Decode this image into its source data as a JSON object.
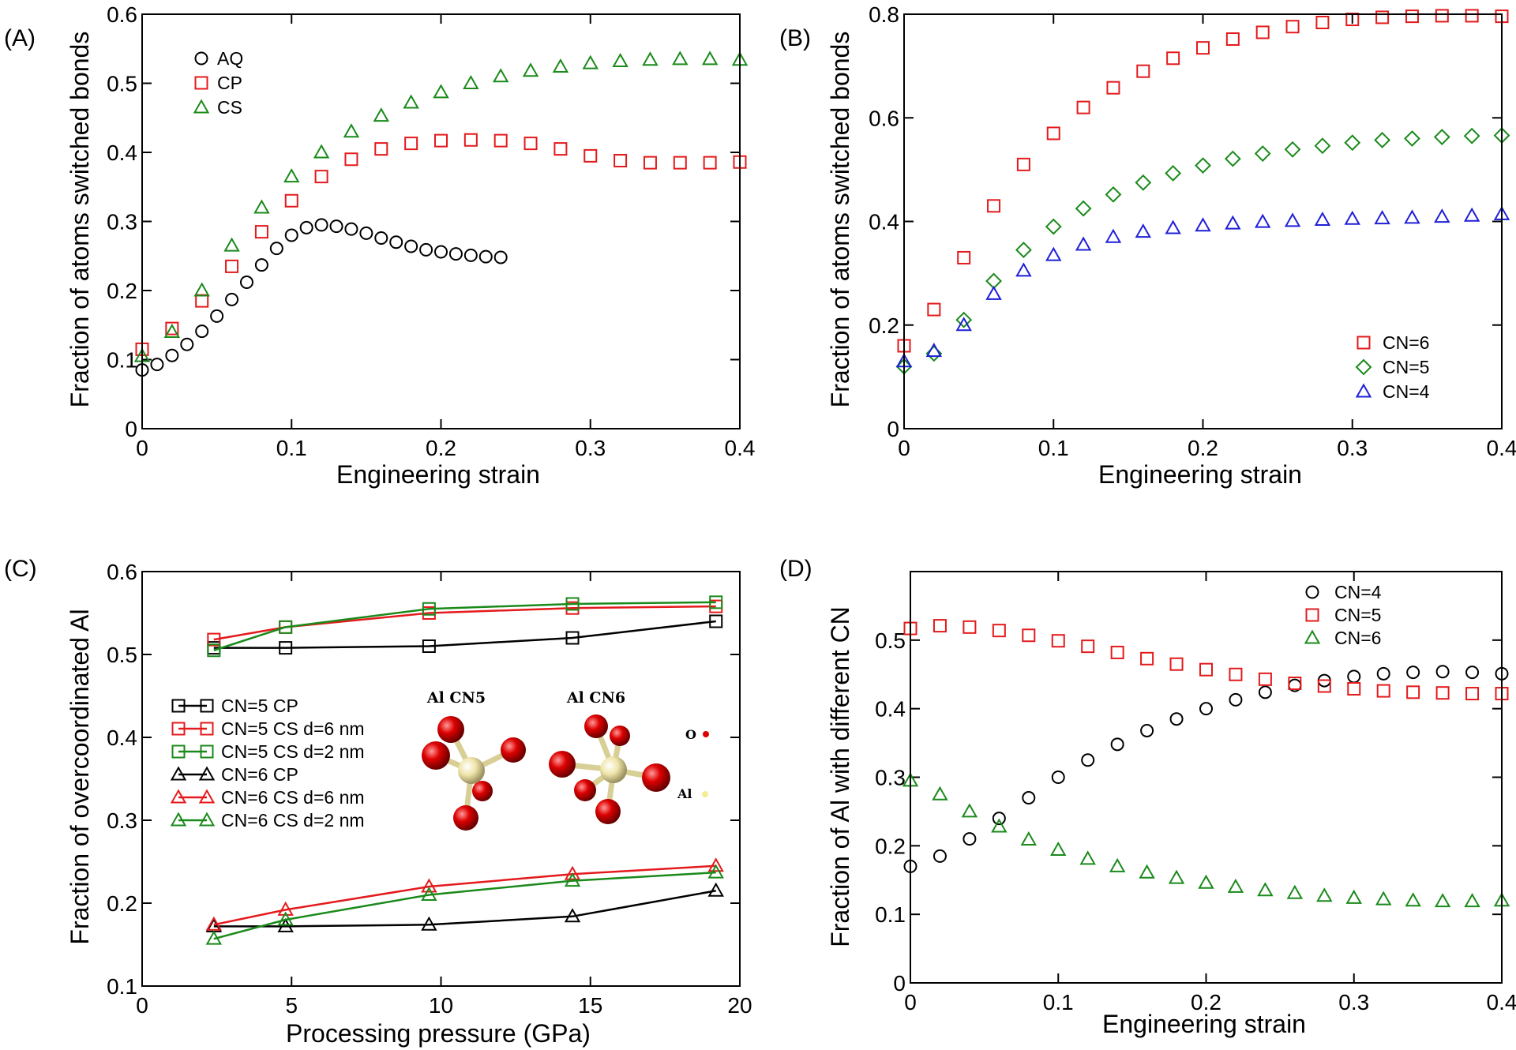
{
  "panels": [
    {
      "label": "(A)",
      "xlabel": "Engineering strain",
      "ylabel": "Fraction of atoms switched bonds",
      "xlim": [
        0,
        0.4
      ],
      "ylim": [
        0,
        0.6
      ],
      "xticks": [
        0,
        0.1,
        0.2,
        0.3,
        0.4
      ],
      "xtick_labels": [
        "0",
        "0.1",
        "0.2",
        "0.3",
        "0.4"
      ],
      "yticks": [
        0,
        0.1,
        0.2,
        0.3,
        0.4,
        0.5,
        0.6
      ],
      "ytick_labels": [
        "0",
        "0.1",
        "0.2",
        "0.3",
        "0.4",
        "0.5",
        "0.6"
      ],
      "legend_position": "top-left"
    },
    {
      "label": "(B)",
      "xlabel": "Engineering strain",
      "ylabel": "Fraction of atoms switched bonds",
      "xlim": [
        0,
        0.4
      ],
      "ylim": [
        0,
        0.8
      ],
      "xticks": [
        0,
        0.1,
        0.2,
        0.3,
        0.4
      ],
      "xtick_labels": [
        "0",
        "0.1",
        "0.2",
        "0.3",
        "0.4"
      ],
      "yticks": [
        0,
        0.2,
        0.4,
        0.6,
        0.8
      ],
      "ytick_labels": [
        "0",
        "0.2",
        "0.4",
        "0.6",
        "0.8"
      ],
      "legend_position": "bottom-right"
    },
    {
      "label": "(C)",
      "xlabel": "Processing pressure (GPa)",
      "ylabel": "Fraction of overcoordinated Al",
      "xlim": [
        0,
        20
      ],
      "ylim": [
        0.1,
        0.6
      ],
      "xticks": [
        0,
        5,
        10,
        15,
        20
      ],
      "xtick_labels": [
        "0",
        "5",
        "10",
        "15",
        "20"
      ],
      "yticks": [
        0.1,
        0.2,
        0.3,
        0.4,
        0.5,
        0.6
      ],
      "ytick_labels": [
        "0.1",
        "0.2",
        "0.3",
        "0.4",
        "0.5",
        "0.6"
      ],
      "legend_position": "center-left",
      "inset": {
        "title_cn5": "Al CN5",
        "title_cn6": "Al CN6",
        "key_o": "O",
        "key_al": "Al"
      }
    },
    {
      "label": "(D)",
      "xlabel": "Engineering strain",
      "ylabel": "Fraction of Al with different CN",
      "xlim": [
        0,
        0.4
      ],
      "ylim": [
        0,
        0.6
      ],
      "xticks": [
        0,
        0.1,
        0.2,
        0.3,
        0.4
      ],
      "xtick_labels": [
        "0",
        "0.1",
        "0.2",
        "0.3",
        "0.4"
      ],
      "yticks": [
        0,
        0.1,
        0.2,
        0.3,
        0.4,
        0.5
      ],
      "ytick_labels": [
        "0",
        "0.1",
        "0.2",
        "0.3",
        "0.4",
        "0.5"
      ],
      "legend_position": "top-right"
    }
  ],
  "colors": {
    "black": "#000000",
    "red": "#e41a1c",
    "green": "#1a8a1a",
    "blue": "#1f1fd8",
    "oxygen": "#dd0000",
    "aluminum": "#eee4a8"
  },
  "chart_data": [
    {
      "type": "scatter",
      "panel": "(A)",
      "series": [
        {
          "name": "AQ",
          "marker": "circle",
          "color": "#000000",
          "x": [
            0,
            0.01,
            0.02,
            0.03,
            0.04,
            0.05,
            0.06,
            0.07,
            0.08,
            0.09,
            0.1,
            0.11,
            0.12,
            0.13,
            0.14,
            0.15,
            0.16,
            0.17,
            0.18,
            0.19,
            0.2,
            0.21,
            0.22,
            0.23,
            0.24
          ],
          "y": [
            0.085,
            0.093,
            0.106,
            0.122,
            0.141,
            0.163,
            0.187,
            0.212,
            0.237,
            0.261,
            0.28,
            0.291,
            0.295,
            0.293,
            0.289,
            0.283,
            0.276,
            0.27,
            0.264,
            0.259,
            0.256,
            0.253,
            0.251,
            0.249,
            0.248
          ]
        },
        {
          "name": "CP",
          "marker": "square",
          "color": "#e41a1c",
          "x": [
            0,
            0.02,
            0.04,
            0.06,
            0.08,
            0.1,
            0.12,
            0.14,
            0.16,
            0.18,
            0.2,
            0.22,
            0.24,
            0.26,
            0.28,
            0.3,
            0.32,
            0.34,
            0.36,
            0.38,
            0.4
          ],
          "y": [
            0.115,
            0.145,
            0.185,
            0.235,
            0.285,
            0.33,
            0.365,
            0.39,
            0.405,
            0.413,
            0.417,
            0.418,
            0.417,
            0.413,
            0.405,
            0.395,
            0.388,
            0.385,
            0.385,
            0.385,
            0.386
          ]
        },
        {
          "name": "CS",
          "marker": "triangle",
          "color": "#1a8a1a",
          "x": [
            0,
            0.02,
            0.04,
            0.06,
            0.08,
            0.1,
            0.12,
            0.14,
            0.16,
            0.18,
            0.2,
            0.22,
            0.24,
            0.26,
            0.28,
            0.3,
            0.32,
            0.34,
            0.36,
            0.38,
            0.4
          ],
          "y": [
            0.105,
            0.14,
            0.2,
            0.265,
            0.32,
            0.365,
            0.4,
            0.43,
            0.453,
            0.472,
            0.487,
            0.5,
            0.51,
            0.518,
            0.524,
            0.529,
            0.532,
            0.534,
            0.535,
            0.535,
            0.534
          ]
        }
      ]
    },
    {
      "type": "scatter",
      "panel": "(B)",
      "series": [
        {
          "name": "CN=6",
          "marker": "square",
          "color": "#e41a1c",
          "x": [
            0,
            0.02,
            0.04,
            0.06,
            0.08,
            0.1,
            0.12,
            0.14,
            0.16,
            0.18,
            0.2,
            0.22,
            0.24,
            0.26,
            0.28,
            0.3,
            0.32,
            0.34,
            0.36,
            0.38,
            0.4
          ],
          "y": [
            0.16,
            0.23,
            0.33,
            0.43,
            0.51,
            0.57,
            0.62,
            0.658,
            0.69,
            0.715,
            0.735,
            0.752,
            0.765,
            0.776,
            0.784,
            0.79,
            0.794,
            0.796,
            0.797,
            0.797,
            0.796
          ]
        },
        {
          "name": "CN=5",
          "marker": "diamond",
          "color": "#1a8a1a",
          "x": [
            0,
            0.02,
            0.04,
            0.06,
            0.08,
            0.1,
            0.12,
            0.14,
            0.16,
            0.18,
            0.2,
            0.22,
            0.24,
            0.26,
            0.28,
            0.3,
            0.32,
            0.34,
            0.36,
            0.38,
            0.4
          ],
          "y": [
            0.12,
            0.145,
            0.21,
            0.285,
            0.345,
            0.39,
            0.425,
            0.452,
            0.475,
            0.493,
            0.508,
            0.521,
            0.531,
            0.539,
            0.546,
            0.552,
            0.557,
            0.56,
            0.563,
            0.565,
            0.566
          ]
        },
        {
          "name": "CN=4",
          "marker": "triangle",
          "color": "#1f1fd8",
          "x": [
            0,
            0.02,
            0.04,
            0.06,
            0.08,
            0.1,
            0.12,
            0.14,
            0.16,
            0.18,
            0.2,
            0.22,
            0.24,
            0.26,
            0.28,
            0.3,
            0.32,
            0.34,
            0.36,
            0.38,
            0.4
          ],
          "y": [
            0.13,
            0.15,
            0.2,
            0.26,
            0.305,
            0.335,
            0.355,
            0.37,
            0.38,
            0.387,
            0.392,
            0.396,
            0.399,
            0.401,
            0.403,
            0.405,
            0.406,
            0.407,
            0.409,
            0.411,
            0.414
          ]
        }
      ]
    },
    {
      "type": "line",
      "panel": "(C)",
      "x": [
        2.4,
        4.8,
        9.6,
        14.4,
        19.2
      ],
      "series": [
        {
          "name": "CN=5 CP",
          "marker": "square",
          "color": "#000000",
          "y": [
            0.508,
            0.508,
            0.51,
            0.52,
            0.54
          ]
        },
        {
          "name": "CN=5 CS d=6 nm",
          "marker": "square",
          "color": "#e41a1c",
          "y": [
            0.518,
            0.533,
            0.55,
            0.556,
            0.558
          ]
        },
        {
          "name": "CN=5 CS d=2 nm",
          "marker": "square",
          "color": "#1a8a1a",
          "y": [
            0.505,
            0.533,
            0.555,
            0.561,
            0.563
          ]
        },
        {
          "name": "CN=6 CP",
          "marker": "triangle",
          "color": "#000000",
          "y": [
            0.172,
            0.172,
            0.174,
            0.184,
            0.215
          ]
        },
        {
          "name": "CN=6 CS d=6 nm",
          "marker": "triangle",
          "color": "#e41a1c",
          "y": [
            0.174,
            0.192,
            0.22,
            0.235,
            0.245
          ]
        },
        {
          "name": "CN=6 CS d=2 nm",
          "marker": "triangle",
          "color": "#1a8a1a",
          "y": [
            0.157,
            0.18,
            0.21,
            0.227,
            0.237
          ]
        }
      ]
    },
    {
      "type": "scatter",
      "panel": "(D)",
      "series": [
        {
          "name": "CN=4",
          "marker": "circle",
          "color": "#000000",
          "x": [
            0,
            0.02,
            0.04,
            0.06,
            0.08,
            0.1,
            0.12,
            0.14,
            0.16,
            0.18,
            0.2,
            0.22,
            0.24,
            0.26,
            0.28,
            0.3,
            0.32,
            0.34,
            0.36,
            0.38,
            0.4
          ],
          "y": [
            0.17,
            0.185,
            0.21,
            0.24,
            0.27,
            0.3,
            0.325,
            0.348,
            0.368,
            0.385,
            0.4,
            0.413,
            0.424,
            0.434,
            0.441,
            0.447,
            0.451,
            0.453,
            0.454,
            0.453,
            0.451
          ]
        },
        {
          "name": "CN=5",
          "marker": "square",
          "color": "#e41a1c",
          "x": [
            0,
            0.02,
            0.04,
            0.06,
            0.08,
            0.1,
            0.12,
            0.14,
            0.16,
            0.18,
            0.2,
            0.22,
            0.24,
            0.26,
            0.28,
            0.3,
            0.32,
            0.34,
            0.36,
            0.38,
            0.4
          ],
          "y": [
            0.517,
            0.521,
            0.519,
            0.514,
            0.507,
            0.499,
            0.491,
            0.482,
            0.473,
            0.465,
            0.457,
            0.45,
            0.443,
            0.437,
            0.433,
            0.429,
            0.426,
            0.424,
            0.423,
            0.422,
            0.422
          ]
        },
        {
          "name": "CN=6",
          "marker": "triangle",
          "color": "#1a8a1a",
          "x": [
            0,
            0.02,
            0.04,
            0.06,
            0.08,
            0.1,
            0.12,
            0.14,
            0.16,
            0.18,
            0.2,
            0.22,
            0.24,
            0.26,
            0.28,
            0.3,
            0.32,
            0.34,
            0.36,
            0.38,
            0.4
          ],
          "y": [
            0.295,
            0.275,
            0.25,
            0.228,
            0.209,
            0.194,
            0.181,
            0.17,
            0.161,
            0.153,
            0.146,
            0.14,
            0.135,
            0.131,
            0.127,
            0.124,
            0.122,
            0.12,
            0.119,
            0.119,
            0.12
          ]
        }
      ]
    }
  ]
}
